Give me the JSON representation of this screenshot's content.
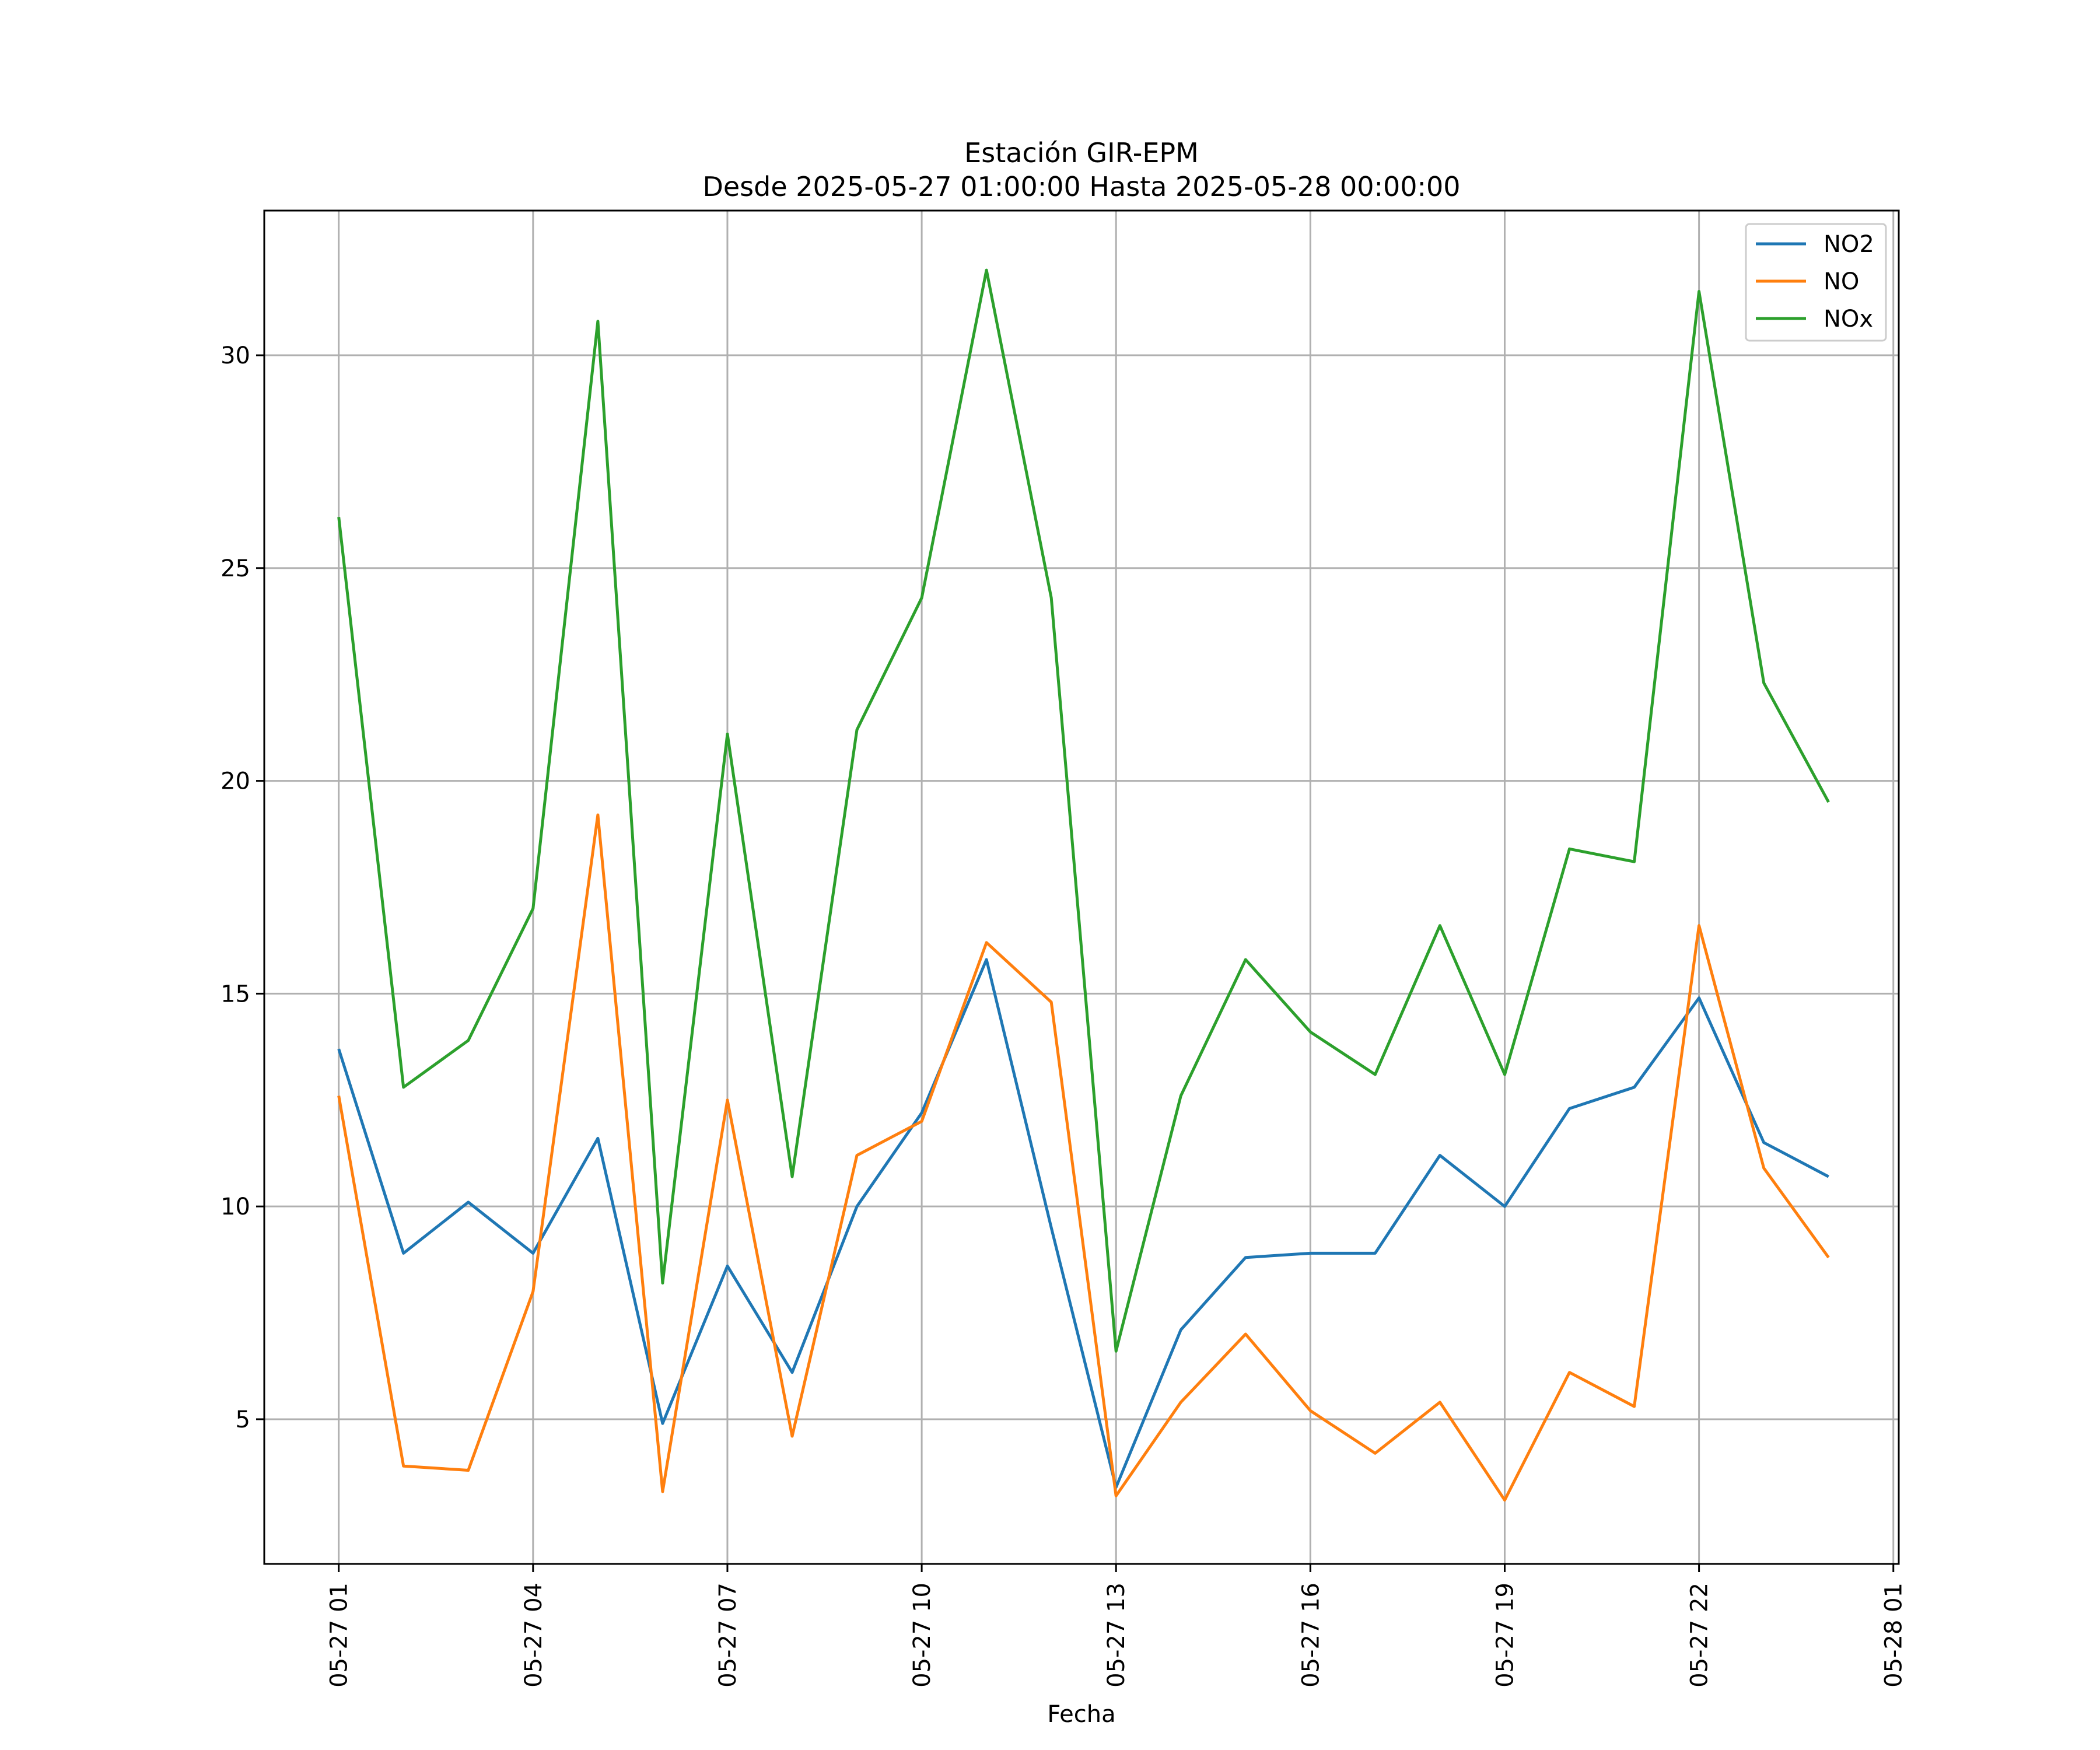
{
  "chart_data": {
    "type": "line",
    "title": "Estación GIR-EPM",
    "subtitle": "Desde 2025-05-27 01:00:00 Hasta 2025-05-28 00:00:00",
    "xlabel": "Fecha",
    "ylabel": "",
    "x": [
      "2025-05-27 01:00",
      "2025-05-27 02:00",
      "2025-05-27 03:00",
      "2025-05-27 04:00",
      "2025-05-27 05:00",
      "2025-05-27 06:00",
      "2025-05-27 07:00",
      "2025-05-27 08:00",
      "2025-05-27 09:00",
      "2025-05-27 10:00",
      "2025-05-27 11:00",
      "2025-05-27 12:00",
      "2025-05-27 13:00",
      "2025-05-27 14:00",
      "2025-05-27 15:00",
      "2025-05-27 16:00",
      "2025-05-27 17:00",
      "2025-05-27 18:00",
      "2025-05-27 19:00",
      "2025-05-27 20:00",
      "2025-05-27 21:00",
      "2025-05-27 22:00",
      "2025-05-27 23:00",
      "2025-05-28 00:00"
    ],
    "xlim": [
      "2025-05-26 23:51",
      "2025-05-28 01:05"
    ],
    "xticks": [
      "2025-05-27 01:00",
      "2025-05-27 04:00",
      "2025-05-27 07:00",
      "2025-05-27 10:00",
      "2025-05-27 13:00",
      "2025-05-27 16:00",
      "2025-05-27 19:00",
      "2025-05-27 22:00",
      "2025-05-28 01:00"
    ],
    "xtick_labels": [
      "05-27 01",
      "05-27 04",
      "05-27 07",
      "05-27 10",
      "05-27 13",
      "05-27 16",
      "05-27 19",
      "05-27 22",
      "05-28 01"
    ],
    "ylim": [
      1.6,
      33.4
    ],
    "yticks": [
      5,
      10,
      15,
      20,
      25,
      30
    ],
    "ytick_labels": [
      "5",
      "10",
      "15",
      "20",
      "25",
      "30"
    ],
    "grid": true,
    "legend_position": "top-right",
    "series": [
      {
        "name": "NO2",
        "color": "#1f77b4",
        "values": [
          13.7,
          8.9,
          10.1,
          8.9,
          11.6,
          4.9,
          8.6,
          6.1,
          10.0,
          12.2,
          15.8,
          9.5,
          3.4,
          7.1,
          8.8,
          8.9,
          8.9,
          11.2,
          10.0,
          12.3,
          12.8,
          14.9,
          11.5,
          10.7
        ]
      },
      {
        "name": "NO",
        "color": "#ff7f0e",
        "values": [
          12.6,
          3.9,
          3.8,
          8.0,
          19.2,
          3.3,
          12.5,
          4.6,
          11.2,
          12.0,
          16.2,
          14.8,
          3.2,
          5.4,
          7.0,
          5.2,
          4.2,
          5.4,
          3.1,
          6.1,
          5.3,
          16.6,
          10.9,
          8.8
        ]
      },
      {
        "name": "NOx",
        "color": "#2ca02c",
        "values": [
          26.2,
          12.8,
          13.9,
          17.0,
          30.8,
          8.2,
          21.1,
          10.7,
          21.2,
          24.3,
          32.0,
          24.3,
          6.6,
          12.6,
          15.8,
          14.1,
          13.1,
          16.6,
          13.1,
          18.4,
          18.1,
          31.5,
          22.3,
          19.5
        ]
      }
    ]
  }
}
